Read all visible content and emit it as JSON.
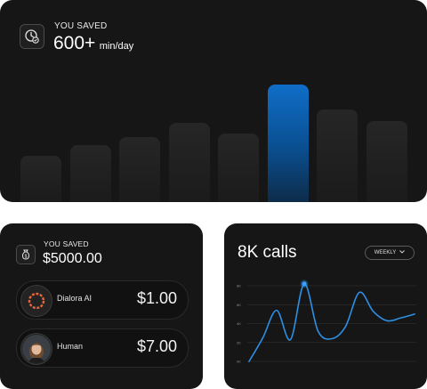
{
  "time_card": {
    "label": "YOU SAVED",
    "value": "600+",
    "unit": "min/day",
    "bars": [
      0.23,
      0.28,
      0.32,
      0.39,
      0.34,
      0.58,
      0.46,
      0.4
    ],
    "highlight_index": 5,
    "highlight_color": "#0f6ec8"
  },
  "money_card": {
    "label": "YOU SAVED",
    "value": "$5000.00",
    "rows": [
      {
        "name": "Dialora AI",
        "price": "$1.00"
      },
      {
        "name": "Human",
        "price": "$7.00"
      }
    ]
  },
  "calls_card": {
    "title": "8K calls",
    "period": "WEEKLY",
    "line_color": "#2e8fe3"
  },
  "chart_data": {
    "type": "line",
    "title": "8K calls",
    "y_tick_labels": [
      "8K",
      "6K",
      "4K",
      "2K",
      "0K"
    ],
    "ylim": [
      0,
      8
    ],
    "x": [
      0,
      1,
      2,
      3,
      4,
      5,
      6,
      7,
      8,
      9,
      10,
      11,
      12
    ],
    "series": [
      {
        "values": [
          0,
          2.5,
          5.4,
          2.3,
          8.2,
          3.2,
          2.4,
          3.7,
          7.3,
          5.3,
          4.3,
          4.6,
          5.0
        ]
      }
    ],
    "highlight_point_index": 4,
    "grid": true
  }
}
